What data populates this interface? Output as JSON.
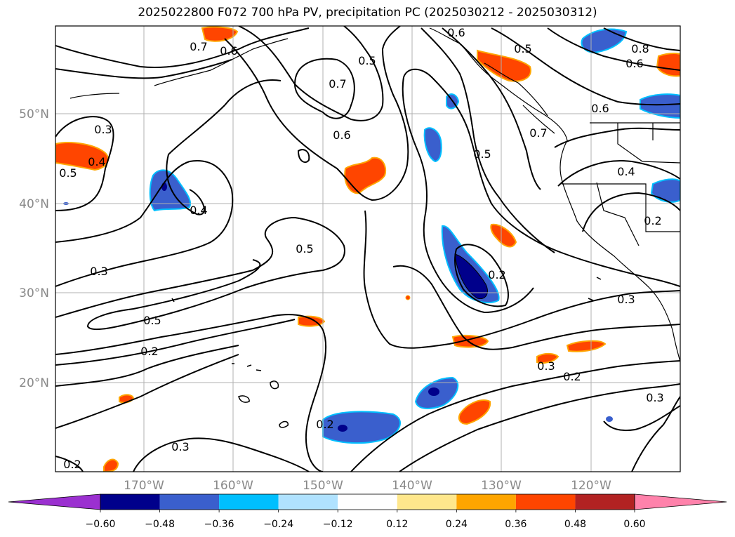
{
  "title": "2025022800 F072 700 hPa PV, precipitation PC (2025030212 - 2025030312)",
  "map": {
    "lat_labels": [
      "50°N",
      "40°N",
      "30°N",
      "20°N"
    ],
    "lon_labels": [
      "170°W",
      "160°W",
      "150°W",
      "140°W",
      "130°W",
      "120°W"
    ],
    "contour_labels": [
      "0.7",
      "0.6",
      "0.5",
      "0.7",
      "0.5",
      "0.8",
      "0.6",
      "0.6",
      "0.3",
      "0.4",
      "0.5",
      "0.6",
      "0.5",
      "0.7",
      "0.4",
      "0.4",
      "0.2",
      "0.5",
      "0.3",
      "0.2",
      "0.3",
      "0.5",
      "0.2",
      "0.3",
      "0.2",
      "0.3",
      "0.2",
      "0.3",
      "0.2",
      "0.6"
    ]
  },
  "colorbar": {
    "ticks": [
      "−0.60",
      "−0.48",
      "−0.36",
      "−0.24",
      "−0.12",
      "0.12",
      "0.24",
      "0.36",
      "0.48",
      "0.60"
    ],
    "colors": [
      "#9b30d0",
      "#00008b",
      "#3a5fcd",
      "#00bfff",
      "#b0e2ff",
      "#ffffff",
      "#ffe78c",
      "#ffa500",
      "#ff4500",
      "#b22222",
      "#ff82ab"
    ]
  },
  "colors": {
    "contour": "#000000",
    "grid": "#b0b0b0",
    "coast": "#000000"
  }
}
